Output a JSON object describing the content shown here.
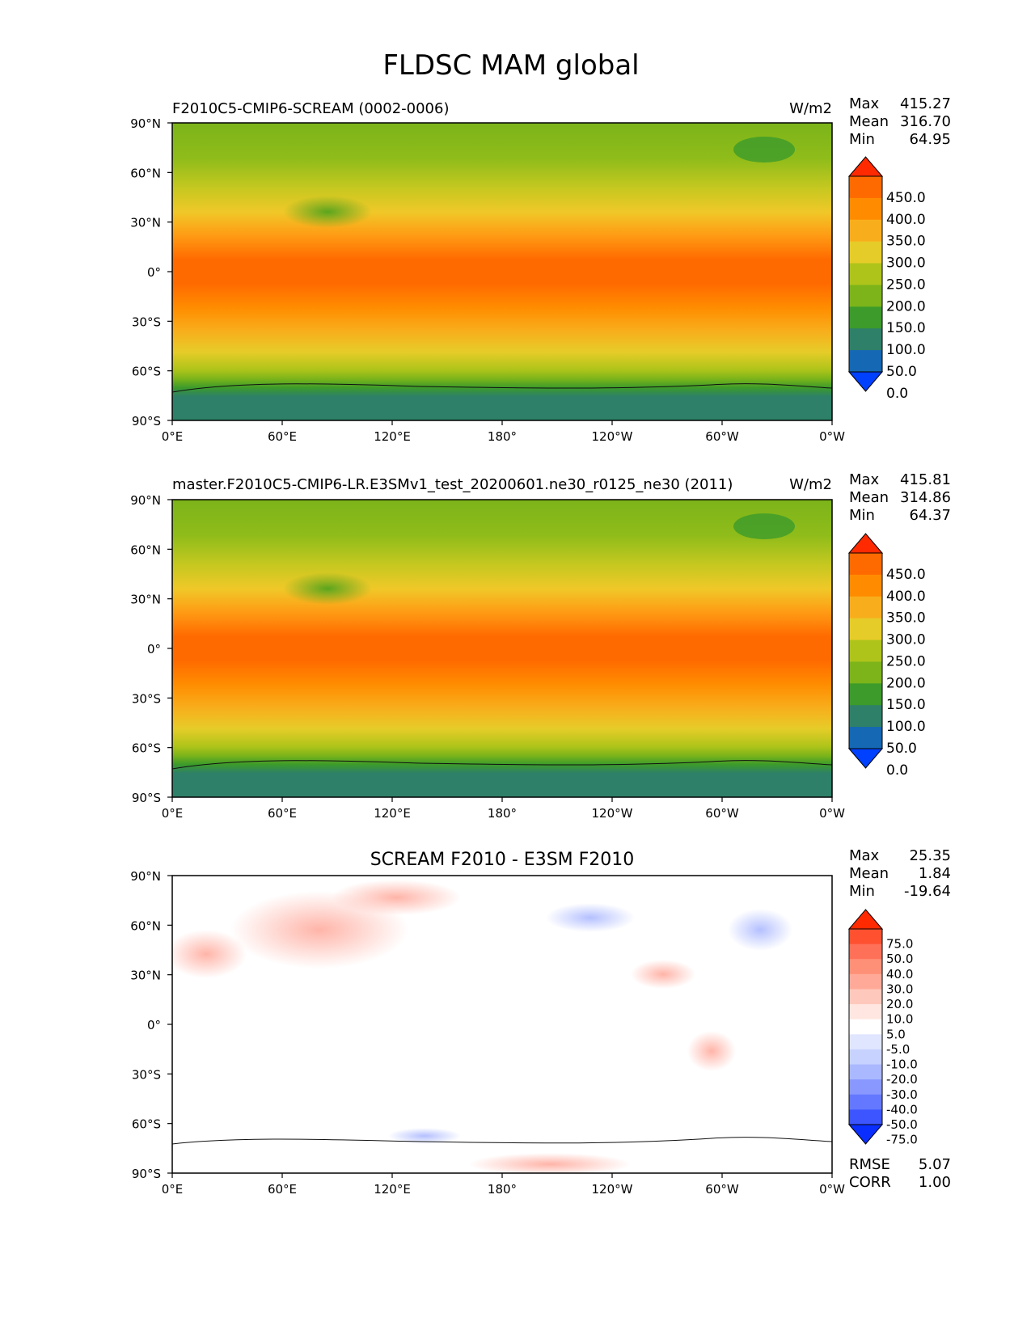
{
  "figure": {
    "title": "FLDSC MAM global"
  },
  "axes": {
    "lat_ticks": [
      "90°N",
      "60°N",
      "30°N",
      "0°",
      "30°S",
      "60°S",
      "90°S"
    ],
    "lon_ticks": [
      "0°E",
      "60°E",
      "120°E",
      "180°",
      "120°W",
      "60°W",
      "0°W"
    ]
  },
  "panels": [
    {
      "left_title": "F2010C5-CMIP6-SCREAM (0002-0006)",
      "center_title": "",
      "units": "W/m2",
      "stats": [
        {
          "label": "Max",
          "value": "415.27"
        },
        {
          "label": "Mean",
          "value": "316.70"
        },
        {
          "label": "Min",
          "value": "64.95"
        }
      ],
      "colorbar": {
        "labels": [
          "450.0",
          "400.0",
          "350.0",
          "300.0",
          "250.0",
          "200.0",
          "150.0",
          "100.0",
          "50.0",
          "0.0"
        ],
        "colors": [
          "#ff2a00",
          "#ff6a00",
          "#ff8c00",
          "#f8ae1c",
          "#e6cc28",
          "#aec41a",
          "#7cb41a",
          "#3c9b2a",
          "#2e8068",
          "#1468b4",
          "#0040ff"
        ]
      }
    },
    {
      "left_title": "master.F2010C5-CMIP6-LR.E3SMv1_test_20200601.ne30_r0125_ne30 (2011)",
      "center_title": "",
      "units": "W/m2",
      "stats": [
        {
          "label": "Max",
          "value": "415.81"
        },
        {
          "label": "Mean",
          "value": "314.86"
        },
        {
          "label": "Min",
          "value": "64.37"
        }
      ],
      "colorbar": {
        "labels": [
          "450.0",
          "400.0",
          "350.0",
          "300.0",
          "250.0",
          "200.0",
          "150.0",
          "100.0",
          "50.0",
          "0.0"
        ],
        "colors": [
          "#ff2a00",
          "#ff6a00",
          "#ff8c00",
          "#f8ae1c",
          "#e6cc28",
          "#aec41a",
          "#7cb41a",
          "#3c9b2a",
          "#2e8068",
          "#1468b4",
          "#0040ff"
        ]
      }
    },
    {
      "left_title": "",
      "center_title": "SCREAM F2010 - E3SM F2010",
      "units": "",
      "stats": [
        {
          "label": "Max",
          "value": "25.35"
        },
        {
          "label": "Mean",
          "value": "1.84"
        },
        {
          "label": "Min",
          "value": "-19.64"
        }
      ],
      "extra_stats": [
        {
          "label": "RMSE",
          "value": "5.07"
        },
        {
          "label": "CORR",
          "value": "1.00"
        }
      ],
      "colorbar": {
        "labels": [
          "75.0",
          "50.0",
          "40.0",
          "30.0",
          "20.0",
          "10.0",
          "5.0",
          "-5.0",
          "-10.0",
          "-20.0",
          "-30.0",
          "-40.0",
          "-50.0",
          "-75.0"
        ],
        "colors": [
          "#ff2a00",
          "#ff5030",
          "#ff7058",
          "#ff9078",
          "#ffaa98",
          "#ffc8bc",
          "#ffe6e0",
          "#ffffff",
          "#e0e6ff",
          "#c8d2ff",
          "#aab8ff",
          "#8898ff",
          "#6478ff",
          "#3c55ff",
          "#0a2eff"
        ]
      }
    }
  ],
  "chart_data": [
    {
      "type": "heatmap",
      "title": "F2010C5-CMIP6-SCREAM (0002-0006)",
      "units": "W/m2",
      "xlim": [
        0,
        360
      ],
      "ylim": [
        -90,
        90
      ],
      "stats": {
        "max": 415.27,
        "mean": 316.7,
        "min": 64.95
      },
      "contour_levels": [
        0,
        50,
        100,
        150,
        200,
        250,
        300,
        350,
        400,
        450
      ],
      "zonal_profile": {
        "lat": [
          90,
          75,
          60,
          45,
          30,
          15,
          0,
          -15,
          -30,
          -45,
          -60,
          -75,
          -90
        ],
        "value": [
          175,
          205,
          215,
          255,
          320,
          375,
          395,
          375,
          320,
          275,
          225,
          135,
          110
        ]
      }
    },
    {
      "type": "heatmap",
      "title": "master.F2010C5-CMIP6-LR.E3SMv1_test_20200601.ne30_r0125_ne30 (2011)",
      "units": "W/m2",
      "xlim": [
        0,
        360
      ],
      "ylim": [
        -90,
        90
      ],
      "stats": {
        "max": 415.81,
        "mean": 314.86,
        "min": 64.37
      },
      "contour_levels": [
        0,
        50,
        100,
        150,
        200,
        250,
        300,
        350,
        400,
        450
      ],
      "zonal_profile": {
        "lat": [
          90,
          75,
          60,
          45,
          30,
          15,
          0,
          -15,
          -30,
          -45,
          -60,
          -75,
          -90
        ],
        "value": [
          170,
          200,
          210,
          250,
          315,
          372,
          392,
          372,
          318,
          270,
          222,
          133,
          108
        ]
      }
    },
    {
      "type": "heatmap",
      "title": "SCREAM F2010 - E3SM F2010",
      "units": "",
      "xlim": [
        0,
        360
      ],
      "ylim": [
        -90,
        90
      ],
      "stats": {
        "max": 25.35,
        "mean": 1.84,
        "min": -19.64,
        "rmse": 5.07,
        "corr": 1.0
      },
      "contour_levels": [
        -75,
        -50,
        -40,
        -30,
        -20,
        -10,
        -5,
        5,
        10,
        20,
        30,
        40,
        50,
        75
      ]
    }
  ]
}
